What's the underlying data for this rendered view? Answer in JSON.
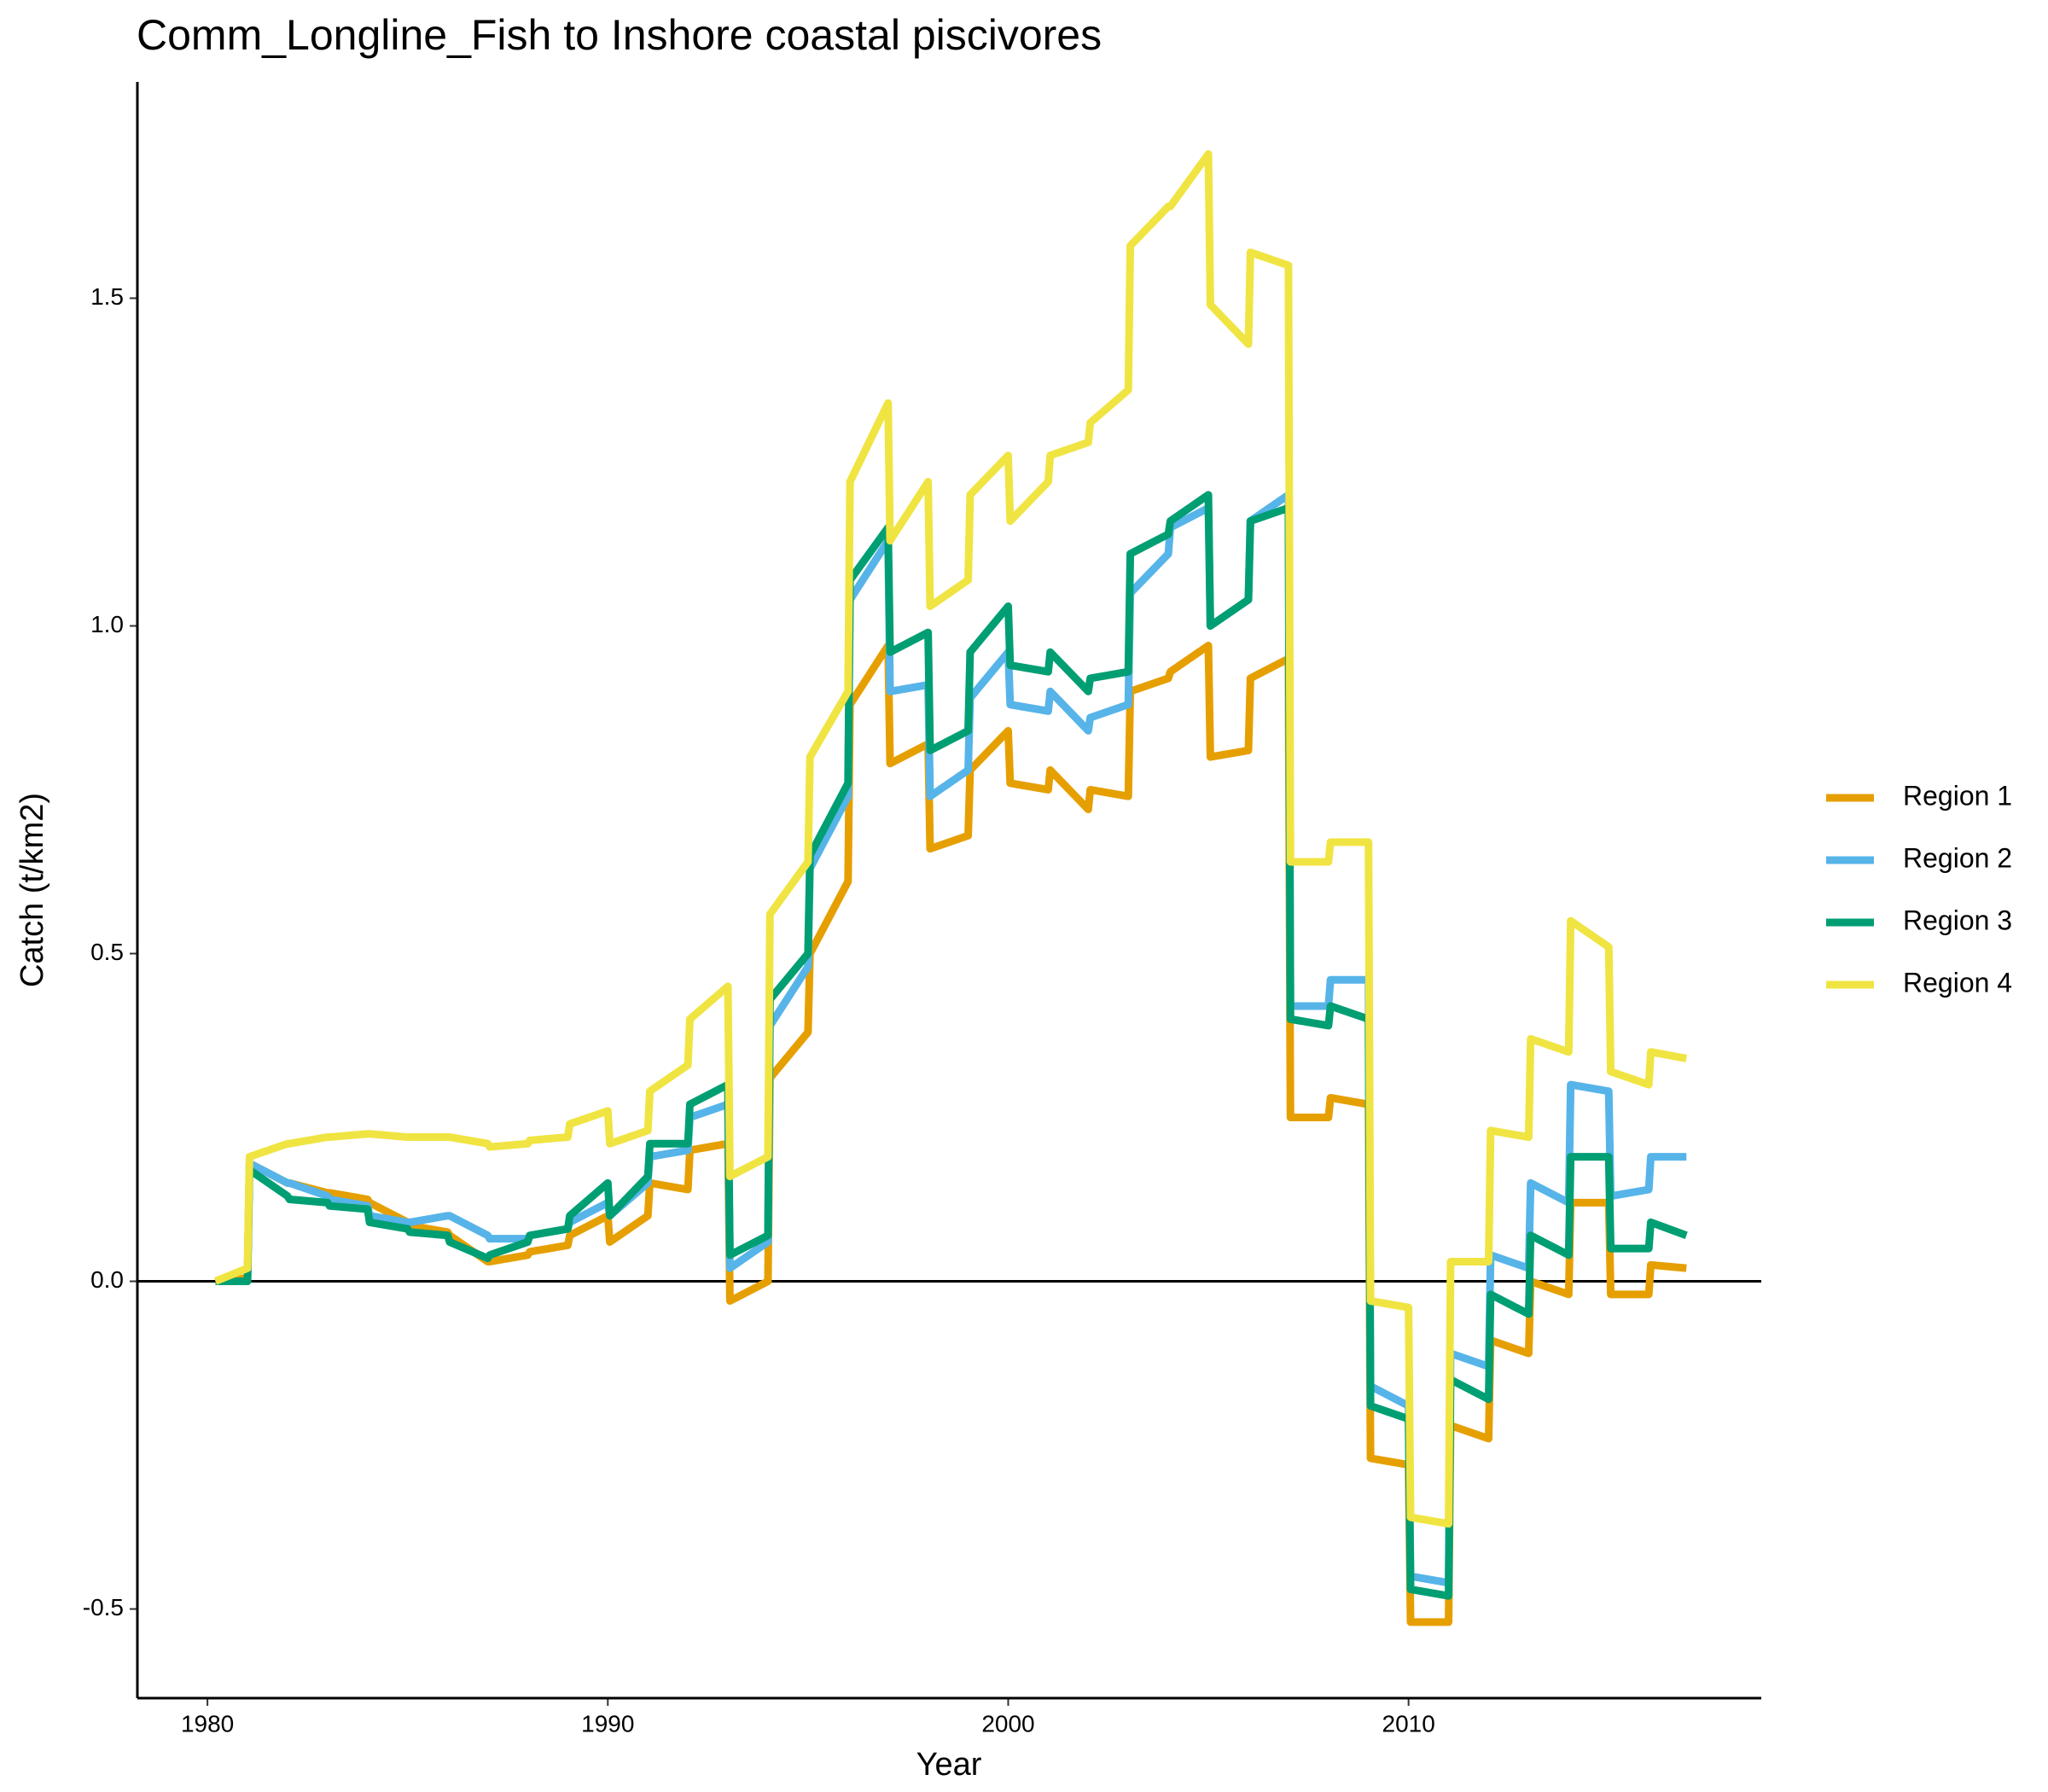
{
  "chart_data": {
    "type": "line",
    "title": "Comm_Longline_Fish to Inshore coastal piscivores",
    "x_label": "Year",
    "y_label": "Catch (t/km2)",
    "x": [
      1980.2,
      1981,
      1981.05,
      1982,
      1982.05,
      1983,
      1983.05,
      1984,
      1984.05,
      1985,
      1985.05,
      1986,
      1986.05,
      1987,
      1987.05,
      1988,
      1988.05,
      1989,
      1989.05,
      1990,
      1990.05,
      1991,
      1991.05,
      1992,
      1992.05,
      1993,
      1993.05,
      1994,
      1994.05,
      1995,
      1995.05,
      1996,
      1996.05,
      1997,
      1997.05,
      1998,
      1998.05,
      1999,
      1999.05,
      2000,
      2000.05,
      2001,
      2001.05,
      2002,
      2002.05,
      2003,
      2003.05,
      2004,
      2004.05,
      2005,
      2005.05,
      2006,
      2006.05,
      2007,
      2007.05,
      2008,
      2008.05,
      2009,
      2009.05,
      2010,
      2010.05,
      2011,
      2011.05,
      2012,
      2012.05,
      2013,
      2013.05,
      2014,
      2014.05,
      2015,
      2015.05,
      2016,
      2016.05,
      2016.94
    ],
    "series": [
      {
        "name": "Region 1",
        "color": "#E69F00",
        "values": [
          0,
          0.005,
          0.18,
          0.15,
          0.15,
          0.135,
          0.135,
          0.125,
          0.12,
          0.09,
          0.085,
          0.075,
          0.07,
          0.03,
          0.03,
          0.04,
          0.045,
          0.055,
          0.07,
          0.1,
          0.06,
          0.1,
          0.15,
          0.14,
          0.2,
          0.21,
          -0.03,
          0,
          0.31,
          0.38,
          0.5,
          0.61,
          0.88,
          0.97,
          0.79,
          0.82,
          0.66,
          0.68,
          0.78,
          0.84,
          0.76,
          0.75,
          0.78,
          0.72,
          0.75,
          0.74,
          0.9,
          0.92,
          0.93,
          0.97,
          0.8,
          0.81,
          0.92,
          0.95,
          0.25,
          0.25,
          0.28,
          0.27,
          -0.27,
          -0.28,
          -0.52,
          -0.52,
          -0.22,
          -0.24,
          -0.09,
          -0.11,
          0,
          -0.02,
          0.12,
          0.12,
          -0.02,
          -0.02,
          0.025,
          0.02
        ]
      },
      {
        "name": "Region 2",
        "color": "#56B4E9",
        "values": [
          0,
          0,
          0.18,
          0.15,
          0.15,
          0.13,
          0.125,
          0.115,
          0.1,
          0.09,
          0.09,
          0.1,
          0.1,
          0.07,
          0.065,
          0.065,
          0.07,
          0.08,
          0.09,
          0.12,
          0.1,
          0.15,
          0.19,
          0.2,
          0.25,
          0.27,
          0.02,
          0.06,
          0.39,
          0.48,
          0.63,
          0.74,
          1.04,
          1.13,
          0.9,
          0.91,
          0.74,
          0.78,
          0.89,
          0.96,
          0.88,
          0.87,
          0.9,
          0.84,
          0.86,
          0.88,
          1.05,
          1.11,
          1.15,
          1.18,
          1.0,
          1.04,
          1.16,
          1.2,
          0.42,
          0.42,
          0.46,
          0.46,
          -0.16,
          -0.19,
          -0.45,
          -0.46,
          -0.11,
          -0.13,
          0.04,
          0.02,
          0.15,
          0.12,
          0.3,
          0.29,
          0.13,
          0.14,
          0.19,
          0.19
        ]
      },
      {
        "name": "Region 3",
        "color": "#009E73",
        "values": [
          0,
          0,
          0.17,
          0.13,
          0.125,
          0.12,
          0.115,
          0.11,
          0.09,
          0.08,
          0.075,
          0.07,
          0.06,
          0.035,
          0.04,
          0.06,
          0.07,
          0.08,
          0.1,
          0.15,
          0.1,
          0.16,
          0.21,
          0.21,
          0.27,
          0.3,
          0.04,
          0.07,
          0.43,
          0.5,
          0.65,
          0.76,
          1.07,
          1.15,
          0.96,
          0.99,
          0.81,
          0.84,
          0.96,
          1.03,
          0.94,
          0.93,
          0.96,
          0.9,
          0.92,
          0.93,
          1.11,
          1.14,
          1.16,
          1.2,
          1.0,
          1.04,
          1.16,
          1.18,
          0.4,
          0.39,
          0.42,
          0.4,
          -0.19,
          -0.21,
          -0.47,
          -0.48,
          -0.15,
          -0.18,
          -0.02,
          -0.05,
          0.07,
          0.04,
          0.19,
          0.19,
          0.05,
          0.05,
          0.09,
          0.07
        ]
      },
      {
        "name": "Region 4",
        "color": "#F0E442",
        "values": [
          0,
          0.02,
          0.19,
          0.21,
          0.21,
          0.22,
          0.22,
          0.225,
          0.225,
          0.22,
          0.22,
          0.22,
          0.22,
          0.21,
          0.205,
          0.21,
          0.215,
          0.22,
          0.24,
          0.26,
          0.21,
          0.23,
          0.29,
          0.33,
          0.4,
          0.45,
          0.16,
          0.19,
          0.56,
          0.64,
          0.8,
          0.9,
          1.22,
          1.34,
          1.13,
          1.22,
          1.03,
          1.07,
          1.2,
          1.26,
          1.16,
          1.22,
          1.26,
          1.28,
          1.31,
          1.36,
          1.58,
          1.64,
          1.64,
          1.72,
          1.49,
          1.43,
          1.57,
          1.55,
          0.64,
          0.64,
          0.67,
          0.67,
          -0.03,
          -0.04,
          -0.36,
          -0.37,
          0.03,
          0.03,
          0.23,
          0.22,
          0.37,
          0.35,
          0.55,
          0.51,
          0.32,
          0.3,
          0.35,
          0.34
        ]
      }
    ],
    "xlim": [
      1978.25,
      2018.81
    ],
    "xticks": [
      1980,
      1990,
      2000,
      2010
    ],
    "ylim": [
      -0.636,
      1.83
    ],
    "yticks": [
      -0.5,
      {
        "value": 0,
        "label": "0.0"
      },
      0.5,
      {
        "value": 1,
        "label": "1.0"
      },
      1.5
    ],
    "hline": 0,
    "grid": false,
    "legend": "right"
  }
}
